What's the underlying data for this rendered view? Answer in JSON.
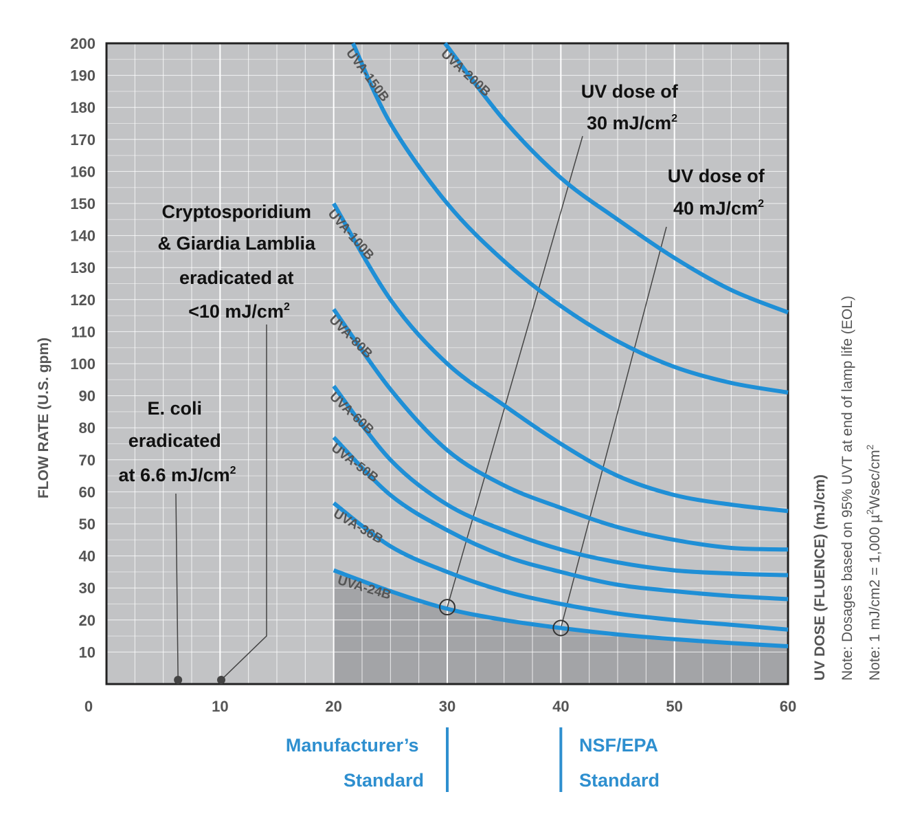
{
  "chart_data": {
    "type": "line",
    "ylabel": "FLOW RATE (U.S. gpm)",
    "xlim": [
      0,
      60
    ],
    "ylim": [
      0,
      200
    ],
    "x_ticks": [
      "0",
      "10",
      "20",
      "30",
      "40",
      "50",
      "60"
    ],
    "y_ticks": [
      "10",
      "20",
      "30",
      "40",
      "50",
      "60",
      "70",
      "80",
      "90",
      "100",
      "110",
      "120",
      "130",
      "140",
      "150",
      "160",
      "170",
      "180",
      "190",
      "200"
    ],
    "grid": true,
    "series": [
      {
        "name": "UVA-24B",
        "x_start": 20,
        "points": [
          [
            20,
            35.5
          ],
          [
            25,
            29
          ],
          [
            30,
            23.5
          ],
          [
            35,
            20
          ],
          [
            40,
            17.5
          ],
          [
            45,
            15.5
          ],
          [
            50,
            14
          ],
          [
            55,
            12.8
          ],
          [
            60,
            11.8
          ]
        ]
      },
      {
        "name": "UVA-36B",
        "x_start": 20,
        "points": [
          [
            20,
            56.5
          ],
          [
            25,
            43
          ],
          [
            30,
            35
          ],
          [
            35,
            29
          ],
          [
            40,
            25
          ],
          [
            45,
            22
          ],
          [
            50,
            20
          ],
          [
            55,
            18.5
          ],
          [
            60,
            17
          ]
        ]
      },
      {
        "name": "UVA-50B",
        "x_start": 20,
        "points": [
          [
            20,
            77
          ],
          [
            25,
            59
          ],
          [
            30,
            48
          ],
          [
            35,
            40
          ],
          [
            40,
            35
          ],
          [
            45,
            31
          ],
          [
            50,
            29
          ],
          [
            55,
            27.5
          ],
          [
            60,
            26.5
          ]
        ]
      },
      {
        "name": "UVA-60B",
        "x_start": 20,
        "points": [
          [
            20,
            93
          ],
          [
            25,
            70
          ],
          [
            30,
            56
          ],
          [
            35,
            48
          ],
          [
            40,
            42
          ],
          [
            45,
            38
          ],
          [
            50,
            35.5
          ],
          [
            55,
            34.5
          ],
          [
            60,
            34
          ]
        ]
      },
      {
        "name": "UVA-80B",
        "x_start": 20,
        "points": [
          [
            20,
            117
          ],
          [
            25,
            92
          ],
          [
            30,
            73
          ],
          [
            35,
            62
          ],
          [
            40,
            55
          ],
          [
            45,
            49
          ],
          [
            50,
            45
          ],
          [
            55,
            42.5
          ],
          [
            60,
            42
          ]
        ]
      },
      {
        "name": "UVA-100B",
        "x_start": 20,
        "points": [
          [
            20,
            150
          ],
          [
            25,
            120
          ],
          [
            30,
            100
          ],
          [
            35,
            87
          ],
          [
            40,
            75
          ],
          [
            45,
            65
          ],
          [
            50,
            59
          ],
          [
            55,
            56
          ],
          [
            60,
            54
          ]
        ]
      },
      {
        "name": "UVA-150B",
        "x_start": 22,
        "points": [
          [
            21.7,
            200
          ],
          [
            25,
            175
          ],
          [
            30,
            150
          ],
          [
            35,
            132
          ],
          [
            40,
            118
          ],
          [
            45,
            107
          ],
          [
            50,
            99
          ],
          [
            55,
            94
          ],
          [
            60,
            91
          ]
        ]
      },
      {
        "name": "UVA-200B",
        "x_start": 30,
        "points": [
          [
            29.8,
            200
          ],
          [
            35,
            176
          ],
          [
            40,
            158
          ],
          [
            45,
            145
          ],
          [
            50,
            133
          ],
          [
            55,
            123
          ],
          [
            60,
            116
          ]
        ]
      }
    ],
    "markers": [
      {
        "x": 30,
        "y": 24
      },
      {
        "x": 40,
        "y": 17.5
      },
      {
        "x": 6.3,
        "y": 1.3
      },
      {
        "x": 10.1,
        "y": 1.3
      }
    ],
    "annotations": {
      "dose30": {
        "line1": "UV dose of",
        "line2": "30 mJ/cm",
        "sup": "2"
      },
      "dose40": {
        "line1": "UV dose of",
        "line2": "40 mJ/cm",
        "sup": "2"
      },
      "crypto": {
        "line1": "Cryptosporidium",
        "line2": "& Giardia Lamblia",
        "line3": "eradicated at",
        "line4": "<10 mJ/cm",
        "sup": "2"
      },
      "ecoli": {
        "line1": "E. coli",
        "line2": "eradicated",
        "line3": "at 6.6 mJ/cm",
        "sup": "2"
      }
    },
    "standards": {
      "manufacturer": {
        "line1": "Manufacturer’s",
        "line2": "Standard",
        "x": 30
      },
      "nsf": {
        "line1": "NSF/EPA",
        "line2": "Standard",
        "x": 40
      }
    },
    "right_notes": {
      "line1_bold": "UV DOSE (FLUENCE)",
      "line1_rest": " (mJ/cm)",
      "line2": "Note: Dosages based on 95% UVT at end of lamp life (EOL)",
      "line3_a": "Note: 1 mJ/cm2 = 1,000 µ",
      "line3_sup": "2",
      "line3_b": "Wsec/cm",
      "line3_sup2": "2"
    },
    "colors": {
      "curve": "#1f8fd6",
      "plot_bg": "#c2c3c5",
      "shade": "#a3a4a7",
      "grid": "#ffffff",
      "frame": "#222222",
      "standard": "#2e8fcf"
    }
  }
}
